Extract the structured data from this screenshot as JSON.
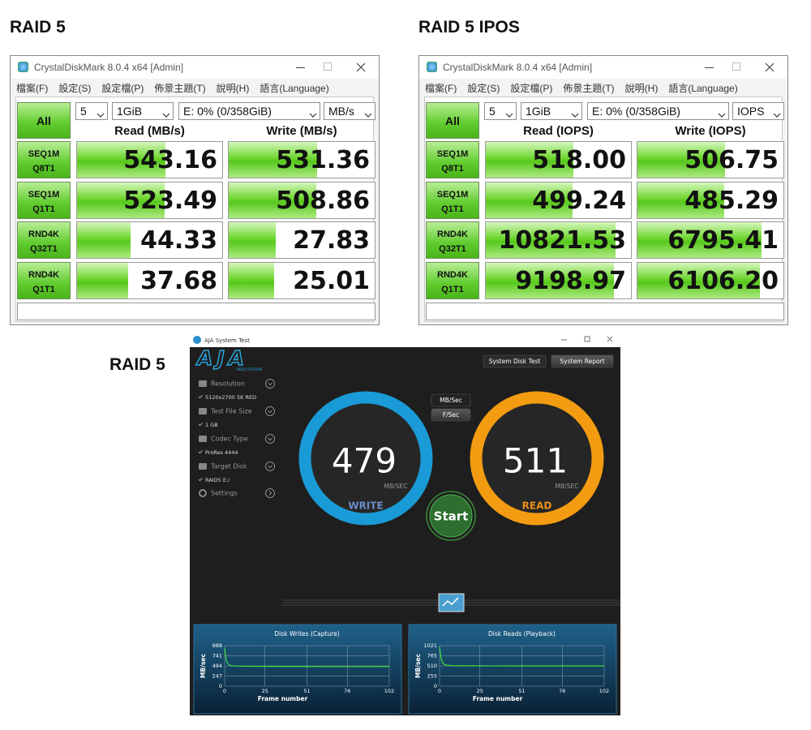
{
  "labels": [
    "RAID 5",
    "RAID 5 IPOS",
    "RAID 5"
  ],
  "crystal": [
    {
      "title": "CrystalDiskMark 8.0.4 x64 [Admin]",
      "menu": [
        "檔案(F)",
        "設定(S)",
        "設定檔(P)",
        "佈景主題(T)",
        "說明(H)",
        "語言(Language)"
      ],
      "all": "All",
      "count": "5",
      "size": "1GiB",
      "drive": "E: 0% (0/358GiB)",
      "unit": "MB/s",
      "headers": [
        "Read (MB/s)",
        "Write (MB/s)"
      ],
      "rows": [
        {
          "test": [
            "SEQ1M",
            "Q8T1"
          ],
          "read": "543.16",
          "write": "531.36"
        },
        {
          "test": [
            "SEQ1M",
            "Q1T1"
          ],
          "read": "523.49",
          "write": "508.86"
        },
        {
          "test": [
            "RND4K",
            "Q32T1"
          ],
          "read": "44.33",
          "write": "27.83"
        },
        {
          "test": [
            "RND4K",
            "Q1T1"
          ],
          "read": "37.68",
          "write": "25.01"
        }
      ]
    },
    {
      "title": "CrystalDiskMark 8.0.4 x64 [Admin]",
      "menu": [
        "檔案(F)",
        "設定(S)",
        "設定檔(P)",
        "佈景主題(T)",
        "說明(H)",
        "語言(Language)"
      ],
      "all": "All",
      "count": "5",
      "size": "1GiB",
      "drive": "E: 0% (0/358GiB)",
      "unit": "IOPS",
      "headers": [
        "Read (IOPS)",
        "Write (IOPS)"
      ],
      "rows": [
        {
          "test": [
            "SEQ1M",
            "Q8T1"
          ],
          "read": "518.00",
          "write": "506.75"
        },
        {
          "test": [
            "SEQ1M",
            "Q1T1"
          ],
          "read": "499.24",
          "write": "485.29"
        },
        {
          "test": [
            "RND4K",
            "Q32T1"
          ],
          "read": "10821.53",
          "write": "6795.41"
        },
        {
          "test": [
            "RND4K",
            "Q1T1"
          ],
          "read": "9198.97",
          "write": "6106.20"
        }
      ]
    }
  ],
  "aja": {
    "title": "AJA System Test",
    "logo": "AJA",
    "logo_sub": "VIDEO SYSTEMS",
    "sidebar": [
      {
        "label": "Resolution",
        "value": "5120x2700 5K RED"
      },
      {
        "label": "Test File Size",
        "value": "1 GB"
      },
      {
        "label": "Codec Type",
        "value": "ProRes 4444"
      },
      {
        "label": "Target Disk",
        "value": "RAID5 E:/"
      }
    ],
    "settings": "Settings",
    "buttons": [
      "System Disk Test",
      "System Report"
    ],
    "units": [
      "MB/Sec",
      "F/Sec"
    ],
    "write": {
      "value": 479,
      "unit": "MB/SEC",
      "label": "WRITE"
    },
    "read": {
      "value": 511,
      "unit": "MB/SEC",
      "label": "READ"
    },
    "start": "Start"
  },
  "chart_data": [
    {
      "type": "line",
      "title": "Disk Writes (Capture)",
      "xlabel": "Frame number",
      "ylabel": "MB/sec",
      "x": [
        0,
        1,
        2,
        3,
        5,
        8,
        12,
        20,
        30,
        51,
        76,
        102
      ],
      "series": [
        {
          "color": "#3ddc3d",
          "values": [
            930,
            620,
            545,
            512,
            497,
            490,
            486,
            483,
            481,
            479,
            478,
            479
          ]
        }
      ],
      "xlim": [
        0,
        102
      ],
      "ylim": [
        0,
        988
      ],
      "xticks": [
        0,
        25,
        51,
        76,
        102
      ],
      "yticks": [
        0,
        247,
        494,
        741,
        988
      ],
      "grid": true
    },
    {
      "type": "line",
      "title": "Disk Reads (Playback)",
      "xlabel": "Frame number",
      "ylabel": "MB/sec",
      "x": [
        0,
        1,
        2,
        3,
        5,
        8,
        12,
        20,
        30,
        51,
        76,
        102
      ],
      "series": [
        {
          "color": "#3ddc3d",
          "values": [
            1000,
            690,
            585,
            545,
            527,
            519,
            515,
            513,
            512,
            511,
            510,
            511
          ]
        }
      ],
      "xlim": [
        0,
        102
      ],
      "ylim": [
        0,
        1021
      ],
      "xticks": [
        0,
        25,
        51,
        76,
        102
      ],
      "yticks": [
        0,
        255,
        510,
        765,
        1021
      ],
      "grid": true
    }
  ]
}
